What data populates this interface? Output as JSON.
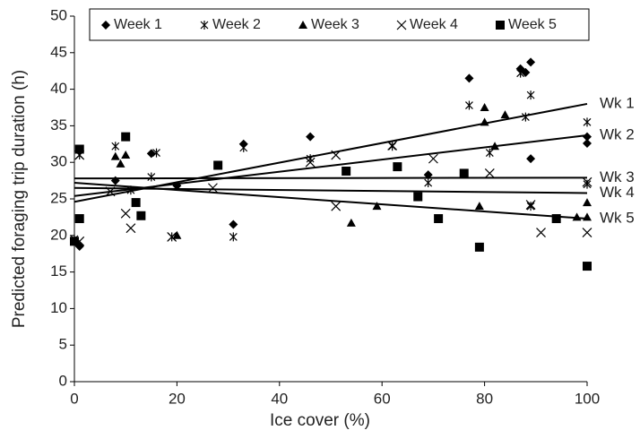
{
  "chart_data": {
    "type": "scatter",
    "xlabel": "Ice cover (%)",
    "ylabel": "Predicted foraging trip duration (h)",
    "xlim": [
      0,
      100
    ],
    "xticks": [
      0,
      20,
      40,
      60,
      80,
      100
    ],
    "ylim": [
      0,
      50
    ],
    "yticks": [
      0,
      5,
      10,
      15,
      20,
      25,
      30,
      35,
      40,
      45,
      50
    ],
    "series": [
      {
        "name": "Week 1",
        "marker": "diamond",
        "color": "#000000",
        "x": [
          1,
          8,
          15,
          20,
          31,
          33,
          46,
          69,
          77,
          87,
          88,
          89,
          89,
          100,
          100
        ],
        "values": [
          18.5,
          27.5,
          31.2,
          26.8,
          21.5,
          32.5,
          33.5,
          28.3,
          41.5,
          42.8,
          42.3,
          43.7,
          30.5,
          33.5,
          32.6
        ]
      },
      {
        "name": "Week 2",
        "marker": "asterisk",
        "color": "#000000",
        "x": [
          0,
          1,
          8,
          11,
          15,
          16,
          19,
          31,
          33,
          46,
          62,
          69,
          77,
          81,
          87,
          88,
          89,
          89,
          100,
          100
        ],
        "values": [
          19.5,
          31,
          32.2,
          26.2,
          28,
          31.3,
          19.8,
          19.8,
          32,
          30.5,
          32.2,
          27.2,
          37.8,
          31.3,
          42.2,
          36.2,
          39.2,
          24,
          35.5,
          27
        ]
      },
      {
        "name": "Week 3",
        "marker": "triangle",
        "color": "#000000",
        "x": [
          8,
          9,
          10,
          20,
          54,
          59,
          79,
          80,
          80,
          82,
          84,
          98,
          100,
          100
        ],
        "values": [
          30.8,
          29.8,
          31,
          20,
          21.7,
          24,
          24,
          37.5,
          35.5,
          32.2,
          36.5,
          22.5,
          24.5,
          22.5
        ]
      },
      {
        "name": "Week 4",
        "marker": "x",
        "color": "#000000",
        "x": [
          1,
          1,
          7,
          10,
          11,
          19,
          27,
          46,
          51,
          51,
          62,
          70,
          81,
          89,
          91,
          100,
          100
        ],
        "values": [
          19.2,
          31,
          26,
          23,
          21,
          19.8,
          26.5,
          30,
          24,
          31,
          32.3,
          30.5,
          28.5,
          24.2,
          20.4,
          27.3,
          20.4
        ]
      },
      {
        "name": "Week 5",
        "marker": "square",
        "color": "#000000",
        "x": [
          0,
          1,
          1,
          10,
          12,
          13,
          28,
          53,
          63,
          67,
          71,
          76,
          79,
          94,
          100
        ],
        "values": [
          19.2,
          22.3,
          31.8,
          33.5,
          24.5,
          22.7,
          29.6,
          28.8,
          29.4,
          25.3,
          22.3,
          28.5,
          18.4,
          22.3,
          15.8
        ]
      }
    ],
    "trendlines": [
      {
        "label": "Wk 1",
        "x": [
          0,
          100
        ],
        "values": [
          24.6,
          38
        ]
      },
      {
        "label": "Wk 2",
        "x": [
          0,
          100
        ],
        "values": [
          25.4,
          33.7
        ]
      },
      {
        "label": "Wk 3",
        "x": [
          0,
          100
        ],
        "values": [
          27.8,
          27.9
        ]
      },
      {
        "label": "Wk 4",
        "x": [
          0,
          100
        ],
        "values": [
          26.5,
          25.8
        ]
      },
      {
        "label": "Wk 5",
        "x": [
          0,
          100
        ],
        "values": [
          27.2,
          22.3
        ]
      }
    ]
  }
}
